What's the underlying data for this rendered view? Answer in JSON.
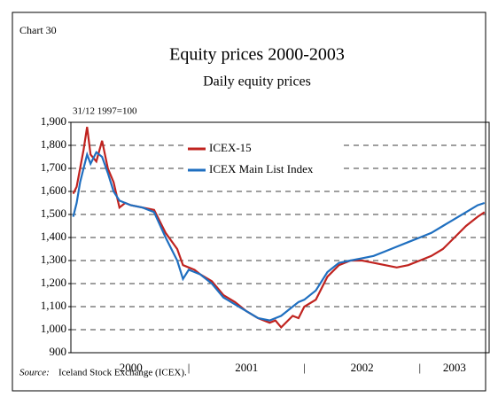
{
  "chart_data": {
    "type": "line",
    "label": "Chart 30",
    "title": "Equity prices 2000-2003",
    "subtitle": "Daily equity prices",
    "y_note": "31/12 1997=100",
    "source_label": "Source:",
    "source": "Iceland Stock Exchange (ICEX).",
    "x": [
      2000.0,
      2000.03,
      2000.06,
      2000.09,
      2000.12,
      2000.15,
      2000.2,
      2000.25,
      2000.3,
      2000.35,
      2000.4,
      2000.45,
      2000.5,
      2000.6,
      2000.7,
      2000.8,
      2000.9,
      2000.95,
      2001.0,
      2001.05,
      2001.1,
      2001.2,
      2001.3,
      2001.4,
      2001.5,
      2001.6,
      2001.7,
      2001.75,
      2001.8,
      2001.9,
      2001.95,
      2002.0,
      2002.1,
      2002.2,
      2002.3,
      2002.4,
      2002.5,
      2002.6,
      2002.7,
      2002.8,
      2002.9,
      2003.0,
      2003.1,
      2003.2,
      2003.3,
      2003.4,
      2003.5,
      2003.56
    ],
    "series": [
      {
        "name": "ICEX-15",
        "color": "#c0231f",
        "values": [
          1590,
          1620,
          1700,
          1780,
          1880,
          1760,
          1730,
          1820,
          1700,
          1640,
          1530,
          1550,
          1540,
          1530,
          1520,
          1420,
          1350,
          1280,
          1270,
          1260,
          1240,
          1210,
          1150,
          1120,
          1080,
          1050,
          1030,
          1040,
          1010,
          1060,
          1050,
          1100,
          1130,
          1230,
          1280,
          1300,
          1300,
          1290,
          1280,
          1270,
          1280,
          1300,
          1320,
          1350,
          1400,
          1450,
          1490,
          1510
        ]
      },
      {
        "name": "ICEX Main List Index",
        "color": "#1f6fc0",
        "values": [
          1490,
          1550,
          1640,
          1700,
          1760,
          1720,
          1770,
          1750,
          1680,
          1600,
          1560,
          1550,
          1540,
          1530,
          1510,
          1400,
          1300,
          1220,
          1260,
          1250,
          1240,
          1200,
          1140,
          1110,
          1080,
          1050,
          1040,
          1050,
          1060,
          1100,
          1120,
          1130,
          1170,
          1250,
          1290,
          1300,
          1310,
          1320,
          1340,
          1360,
          1380,
          1400,
          1420,
          1450,
          1480,
          1510,
          1540,
          1550
        ]
      }
    ],
    "xlim": [
      1999.98,
      2003.6
    ],
    "xticks": [
      {
        "value": 2000.5,
        "label": "2000"
      },
      {
        "value": 2001,
        "label": "|"
      },
      {
        "value": 2001.5,
        "label": "2001"
      },
      {
        "value": 2002,
        "label": "|"
      },
      {
        "value": 2002.5,
        "label": "2002"
      },
      {
        "value": 2003,
        "label": "|"
      },
      {
        "value": 2003.3,
        "label": "2003"
      }
    ],
    "ylim": [
      900,
      1900
    ],
    "yticks": [
      {
        "value": 900,
        "label": "900"
      },
      {
        "value": 1000,
        "label": "1,000"
      },
      {
        "value": 1100,
        "label": "1,100"
      },
      {
        "value": 1200,
        "label": "1,200"
      },
      {
        "value": 1300,
        "label": "1,300"
      },
      {
        "value": 1400,
        "label": "1,400"
      },
      {
        "value": 1500,
        "label": "1,500"
      },
      {
        "value": 1600,
        "label": "1,600"
      },
      {
        "value": 1700,
        "label": "1,700"
      },
      {
        "value": 1800,
        "label": "1,800"
      },
      {
        "value": 1900,
        "label": "1,900"
      }
    ],
    "grid": true
  }
}
